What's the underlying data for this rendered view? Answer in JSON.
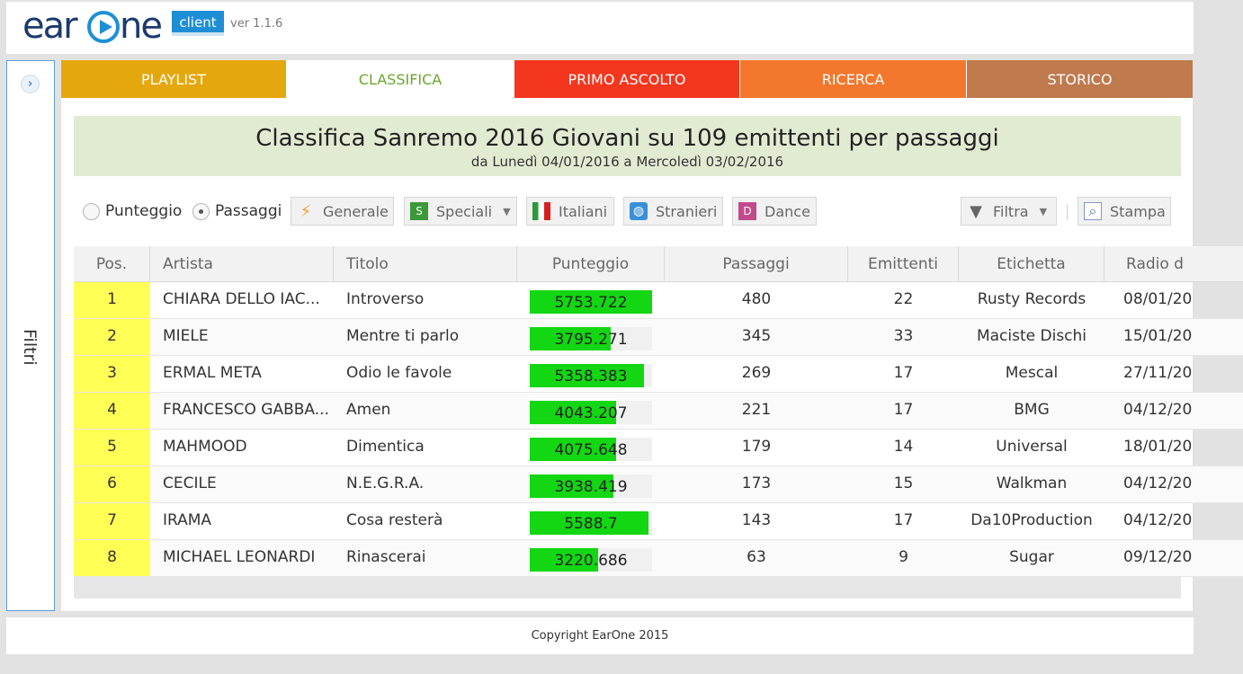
{
  "header": {
    "logo_text_left": "ear",
    "logo_text_right": "ne",
    "client_label": "client",
    "version": "ver 1.1.6"
  },
  "sidebar": {
    "toggle_glyph": "›",
    "label": "Filtri"
  },
  "tabs": [
    {
      "label": "PLAYLIST"
    },
    {
      "label": "CLASSIFICA"
    },
    {
      "label": "PRIMO ASCOLTO"
    },
    {
      "label": "RICERCA"
    },
    {
      "label": "STORICO"
    }
  ],
  "chart": {
    "title": "Classifica Sanremo 2016 Giovani su 109 emittenti per passaggi",
    "subtitle": "da Lunedì 04/01/2016 a Mercoledì 03/02/2016"
  },
  "toolbar": {
    "radio_punteggio": "Punteggio",
    "radio_passaggi": "Passaggi",
    "selected_radio": "Passaggi",
    "btn_generale": "Generale",
    "btn_speciali": "Speciali",
    "btn_speciali_icon": "S",
    "btn_italiani": "Italiani",
    "btn_stranieri": "Stranieri",
    "btn_dance": "Dance",
    "btn_dance_icon": "D",
    "btn_filtra": "Filtra",
    "btn_stampa": "Stampa",
    "icons": [
      "lightning-icon",
      "speciali-icon",
      "italy-flag-icon",
      "globe-icon",
      "dance-icon",
      "filter-icon",
      "print-icon"
    ]
  },
  "table": {
    "columns": [
      "Pos.",
      "Artista",
      "Titolo",
      "Punteggio",
      "Passaggi",
      "Emittenti",
      "Etichetta",
      "Radio d"
    ],
    "score_max": 5753.722,
    "rows": [
      {
        "pos": "1",
        "artista": "CHIARA DELLO IAC...",
        "titolo": "Introverso",
        "punteggio": "5753.722",
        "score": 5753.722,
        "passaggi": "480",
        "emittenti": "22",
        "etichetta": "Rusty Records",
        "radio": "08/01/20"
      },
      {
        "pos": "2",
        "artista": "MIELE",
        "titolo": "Mentre ti parlo",
        "punteggio": "3795.271",
        "score": 3795.271,
        "passaggi": "345",
        "emittenti": "33",
        "etichetta": "Maciste Dischi",
        "radio": "15/01/20"
      },
      {
        "pos": "3",
        "artista": "ERMAL META",
        "titolo": "Odio le favole",
        "punteggio": "5358.383",
        "score": 5358.383,
        "passaggi": "269",
        "emittenti": "17",
        "etichetta": "Mescal",
        "radio": "27/11/20"
      },
      {
        "pos": "4",
        "artista": "FRANCESCO GABBA...",
        "titolo": "Amen",
        "punteggio": "4043.207",
        "score": 4043.207,
        "passaggi": "221",
        "emittenti": "17",
        "etichetta": "BMG",
        "radio": "04/12/20"
      },
      {
        "pos": "5",
        "artista": "MAHMOOD",
        "titolo": "Dimentica",
        "punteggio": "4075.648",
        "score": 4075.648,
        "passaggi": "179",
        "emittenti": "14",
        "etichetta": "Universal",
        "radio": "18/01/20"
      },
      {
        "pos": "6",
        "artista": "CECILE",
        "titolo": "N.E.G.R.A.",
        "punteggio": "3938.419",
        "score": 3938.419,
        "passaggi": "173",
        "emittenti": "15",
        "etichetta": "Walkman",
        "radio": "04/12/20"
      },
      {
        "pos": "7",
        "artista": "IRAMA",
        "titolo": "Cosa resterà",
        "punteggio": "5588.7",
        "score": 5588.7,
        "passaggi": "143",
        "emittenti": "17",
        "etichetta": "Da10Production",
        "radio": "04/12/20"
      },
      {
        "pos": "8",
        "artista": "MICHAEL LEONARDI",
        "titolo": "Rinascerai",
        "punteggio": "3220.686",
        "score": 3220.686,
        "passaggi": "63",
        "emittenti": "9",
        "etichetta": "Sugar",
        "radio": "09/12/20"
      }
    ]
  },
  "footer": {
    "copyright": "Copyright EarOne 2015"
  },
  "colors": {
    "tab_playlist": "#e5a70e",
    "tab_classifica_text": "#6aa62e",
    "tab_primo": "#f4361f",
    "tab_ricerca": "#f3782d",
    "tab_storico": "#bf7a4e",
    "score_bar": "#12d712",
    "pos_highlight": "#ffff55"
  }
}
